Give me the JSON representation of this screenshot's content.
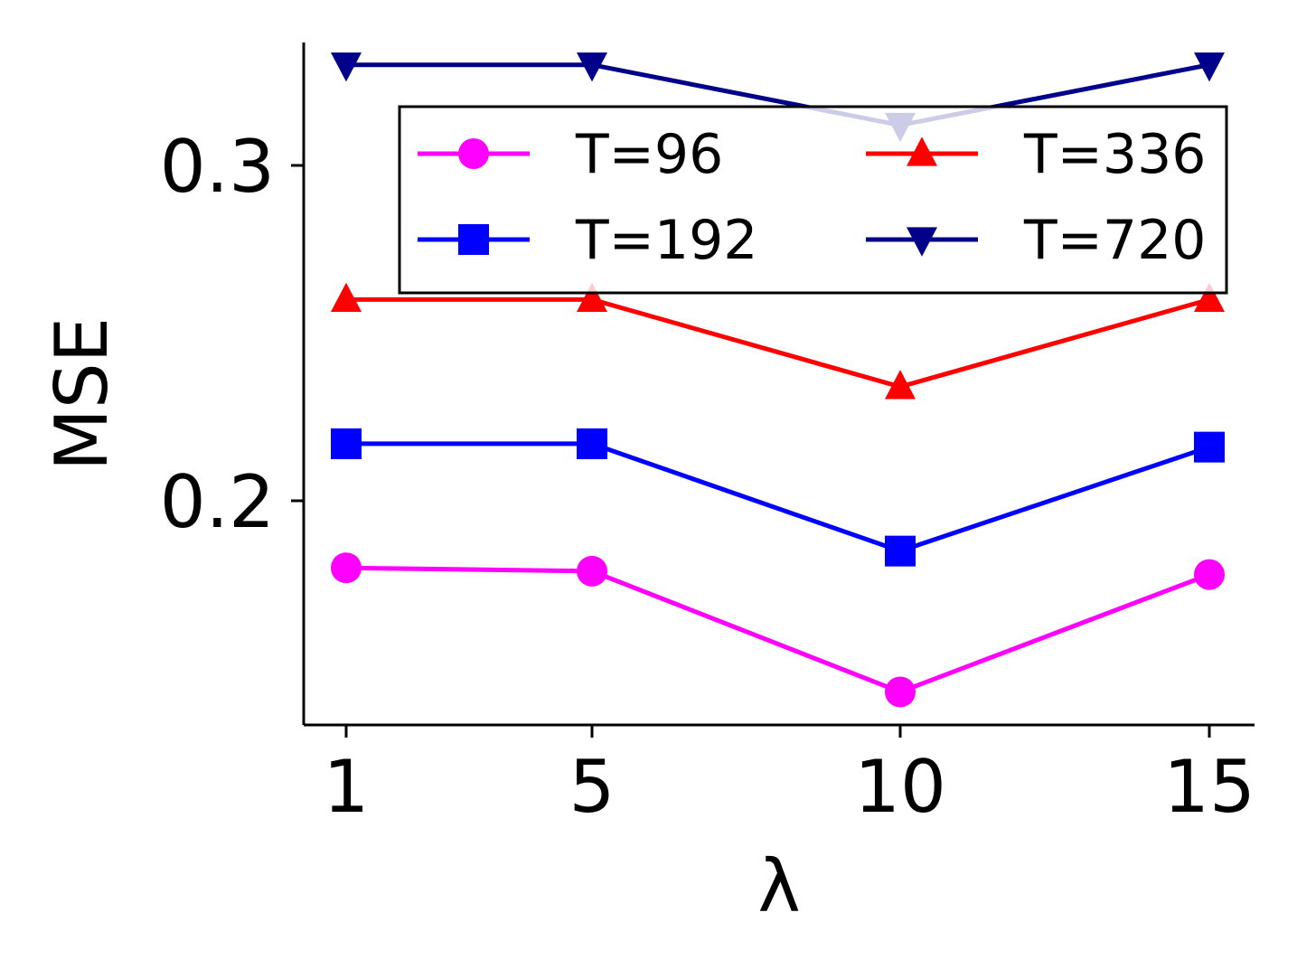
{
  "chart_data": {
    "type": "line",
    "xlabel": "λ",
    "ylabel": "MSE",
    "x": [
      1,
      5,
      10,
      15
    ],
    "x_ticks": [
      "1",
      "5",
      "10",
      "15"
    ],
    "y_ticks": [
      {
        "value": 0.2,
        "label": "0.2"
      },
      {
        "value": 0.3,
        "label": "0.3"
      }
    ],
    "ylim": [
      0.133,
      0.337
    ],
    "grid": false,
    "legend": {
      "position": "upper-right",
      "columns": 2
    },
    "series": [
      {
        "name": "T=96",
        "color": "#ff00ff",
        "marker": "circle",
        "values": [
          0.18,
          0.179,
          0.143,
          0.178
        ]
      },
      {
        "name": "T=192",
        "color": "#0000ff",
        "marker": "square",
        "values": [
          0.217,
          0.217,
          0.185,
          0.216
        ]
      },
      {
        "name": "T=336",
        "color": "#ff0000",
        "marker": "triangle-up",
        "values": [
          0.26,
          0.26,
          0.234,
          0.26
        ]
      },
      {
        "name": "T=720",
        "color": "#00008b",
        "marker": "triangle-down",
        "values": [
          0.33,
          0.33,
          0.312,
          0.33
        ]
      }
    ]
  }
}
